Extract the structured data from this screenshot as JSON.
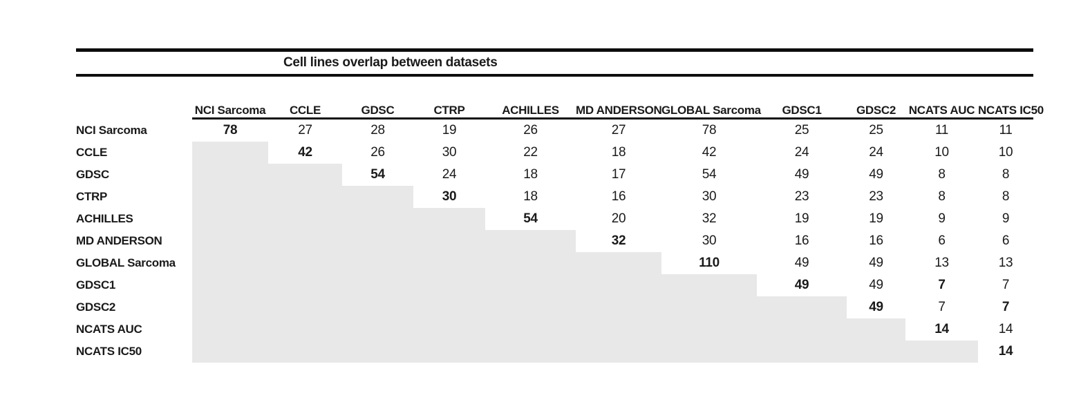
{
  "title": "Cell lines overlap between datasets",
  "colors": {
    "shaded_cell": "#e8e8e8",
    "rule": "#0d0d0d",
    "text": "#1a1a1a",
    "background": "#ffffff"
  },
  "table": {
    "columns": [
      "NCI Sarcoma",
      "CCLE",
      "GDSC",
      "CTRP",
      "ACHILLES",
      "MD ANDERSON",
      "GLOBAL Sarcoma",
      "GDSC1",
      "GDSC2",
      "NCATS AUC",
      "NCATS IC50"
    ],
    "rows": [
      {
        "label": "NCI Sarcoma",
        "cells": [
          {
            "v": "78",
            "bold": true
          },
          {
            "v": "27"
          },
          {
            "v": "28"
          },
          {
            "v": "19"
          },
          {
            "v": "26"
          },
          {
            "v": "27"
          },
          {
            "v": "78"
          },
          {
            "v": "25"
          },
          {
            "v": "25"
          },
          {
            "v": "11"
          },
          {
            "v": "11"
          }
        ]
      },
      {
        "label": "CCLE",
        "cells": [
          {
            "shaded": true
          },
          {
            "v": "42",
            "bold": true
          },
          {
            "v": "26"
          },
          {
            "v": "30"
          },
          {
            "v": "22"
          },
          {
            "v": "18"
          },
          {
            "v": "42"
          },
          {
            "v": "24"
          },
          {
            "v": "24"
          },
          {
            "v": "10"
          },
          {
            "v": "10"
          }
        ]
      },
      {
        "label": "GDSC",
        "cells": [
          {
            "shaded": true
          },
          {
            "shaded": true
          },
          {
            "v": "54",
            "bold": true
          },
          {
            "v": "24"
          },
          {
            "v": "18"
          },
          {
            "v": "17"
          },
          {
            "v": "54"
          },
          {
            "v": "49"
          },
          {
            "v": "49"
          },
          {
            "v": "8"
          },
          {
            "v": "8"
          }
        ]
      },
      {
        "label": "CTRP",
        "cells": [
          {
            "shaded": true
          },
          {
            "shaded": true
          },
          {
            "shaded": true
          },
          {
            "v": "30",
            "bold": true
          },
          {
            "v": "18"
          },
          {
            "v": "16"
          },
          {
            "v": "30"
          },
          {
            "v": "23"
          },
          {
            "v": "23"
          },
          {
            "v": "8"
          },
          {
            "v": "8"
          }
        ]
      },
      {
        "label": "ACHILLES",
        "cells": [
          {
            "shaded": true
          },
          {
            "shaded": true
          },
          {
            "shaded": true
          },
          {
            "shaded": true
          },
          {
            "v": "54",
            "bold": true
          },
          {
            "v": "20"
          },
          {
            "v": "32"
          },
          {
            "v": "19"
          },
          {
            "v": "19"
          },
          {
            "v": "9"
          },
          {
            "v": "9"
          }
        ]
      },
      {
        "label": "MD ANDERSON",
        "cells": [
          {
            "shaded": true
          },
          {
            "shaded": true
          },
          {
            "shaded": true
          },
          {
            "shaded": true
          },
          {
            "shaded": true
          },
          {
            "v": "32",
            "bold": true
          },
          {
            "v": "30"
          },
          {
            "v": "16"
          },
          {
            "v": "16"
          },
          {
            "v": "6"
          },
          {
            "v": "6"
          }
        ]
      },
      {
        "label": "GLOBAL Sarcoma",
        "cells": [
          {
            "shaded": true
          },
          {
            "shaded": true
          },
          {
            "shaded": true
          },
          {
            "shaded": true
          },
          {
            "shaded": true
          },
          {
            "shaded": true
          },
          {
            "v": "110",
            "bold": true
          },
          {
            "v": "49"
          },
          {
            "v": "49"
          },
          {
            "v": "13"
          },
          {
            "v": "13"
          }
        ]
      },
      {
        "label": "GDSC1",
        "cells": [
          {
            "shaded": true
          },
          {
            "shaded": true
          },
          {
            "shaded": true
          },
          {
            "shaded": true
          },
          {
            "shaded": true
          },
          {
            "shaded": true
          },
          {
            "shaded": true
          },
          {
            "v": "49",
            "bold": true
          },
          {
            "v": "49"
          },
          {
            "v": "7",
            "bold": true
          },
          {
            "v": "7"
          }
        ]
      },
      {
        "label": "GDSC2",
        "cells": [
          {
            "shaded": true
          },
          {
            "shaded": true
          },
          {
            "shaded": true
          },
          {
            "shaded": true
          },
          {
            "shaded": true
          },
          {
            "shaded": true
          },
          {
            "shaded": true
          },
          {
            "shaded": true
          },
          {
            "v": "49",
            "bold": true
          },
          {
            "v": "7"
          },
          {
            "v": "7",
            "bold": true
          }
        ]
      },
      {
        "label": "NCATS AUC",
        "cells": [
          {
            "shaded": true
          },
          {
            "shaded": true
          },
          {
            "shaded": true
          },
          {
            "shaded": true
          },
          {
            "shaded": true
          },
          {
            "shaded": true
          },
          {
            "shaded": true
          },
          {
            "shaded": true
          },
          {
            "shaded": true
          },
          {
            "v": "14",
            "bold": true
          },
          {
            "v": "14"
          }
        ]
      },
      {
        "label": "NCATS IC50",
        "cells": [
          {
            "shaded": true
          },
          {
            "shaded": true
          },
          {
            "shaded": true
          },
          {
            "shaded": true
          },
          {
            "shaded": true
          },
          {
            "shaded": true
          },
          {
            "shaded": true
          },
          {
            "shaded": true
          },
          {
            "shaded": true
          },
          {
            "shaded": true
          },
          {
            "v": "14",
            "bold": true
          }
        ]
      }
    ]
  }
}
